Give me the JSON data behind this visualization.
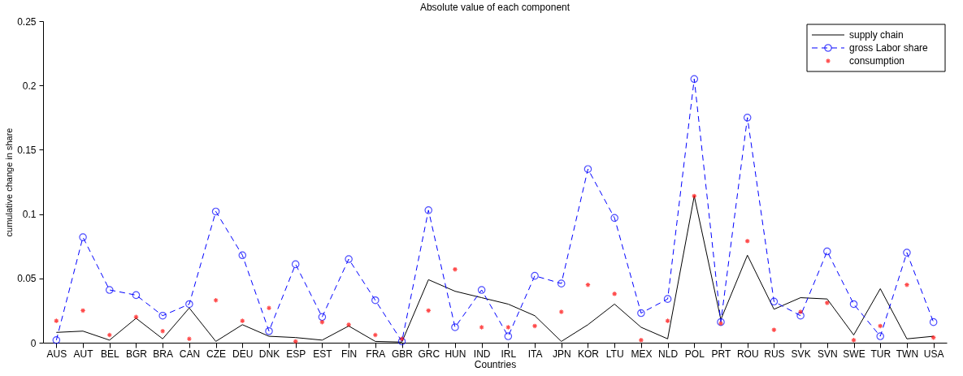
{
  "chart_data": {
    "type": "line",
    "title": "Absolute value of each component",
    "xlabel": "Countries",
    "ylabel": "cumulative change in share",
    "categories": [
      "AUS",
      "AUT",
      "BEL",
      "BGR",
      "BRA",
      "CAN",
      "CZE",
      "DEU",
      "DNK",
      "ESP",
      "EST",
      "FIN",
      "FRA",
      "GBR",
      "GRC",
      "HUN",
      "IND",
      "IRL",
      "ITA",
      "JPN",
      "KOR",
      "LTU",
      "MEX",
      "NLD",
      "POL",
      "PRT",
      "ROU",
      "RUS",
      "SVK",
      "SVN",
      "SWE",
      "TUR",
      "TWN",
      "USA"
    ],
    "ylim": [
      0,
      0.25
    ],
    "yticks": [
      0,
      0.05,
      0.1,
      0.15,
      0.2,
      0.25
    ],
    "grid": false,
    "legend": "top right",
    "series": [
      {
        "name": "supply chain",
        "color": "#000000",
        "line_style": "solid",
        "marker": "none",
        "values": [
          0.008,
          0.009,
          0.002,
          0.019,
          0.003,
          0.027,
          0.001,
          0.014,
          0.005,
          0.004,
          0.002,
          0.013,
          0.001,
          0.0005,
          0.049,
          0.04,
          0.035,
          0.03,
          0.021,
          0.001,
          0.014,
          0.03,
          0.012,
          0.003,
          0.114,
          0.018,
          0.068,
          0.026,
          0.035,
          0.034,
          0.006,
          0.042,
          0.003,
          0.005
        ]
      },
      {
        "name": "gross Labor share",
        "color": "#0000ff",
        "line_style": "dashed",
        "marker": "circle",
        "values": [
          0.002,
          0.082,
          0.041,
          0.037,
          0.021,
          0.03,
          0.102,
          0.068,
          0.009,
          0.061,
          0.02,
          0.065,
          0.033,
          0.001,
          0.103,
          0.012,
          0.041,
          0.005,
          0.052,
          0.046,
          0.135,
          0.097,
          0.023,
          0.034,
          0.205,
          0.016,
          0.175,
          0.032,
          0.021,
          0.071,
          0.03,
          0.005,
          0.07,
          0.016
        ]
      },
      {
        "name": "consumption",
        "type": "scatter",
        "color": "#ff0000",
        "marker": "cross",
        "values": [
          0.017,
          0.025,
          0.006,
          0.02,
          0.009,
          0.003,
          0.033,
          0.017,
          0.027,
          0.001,
          0.016,
          0.014,
          0.006,
          0.003,
          0.025,
          0.057,
          0.012,
          0.012,
          0.013,
          0.024,
          0.045,
          0.038,
          0.002,
          0.017,
          0.114,
          0.015,
          0.079,
          0.01,
          0.024,
          0.031,
          0.002,
          0.013,
          0.045,
          0.004
        ]
      }
    ]
  }
}
